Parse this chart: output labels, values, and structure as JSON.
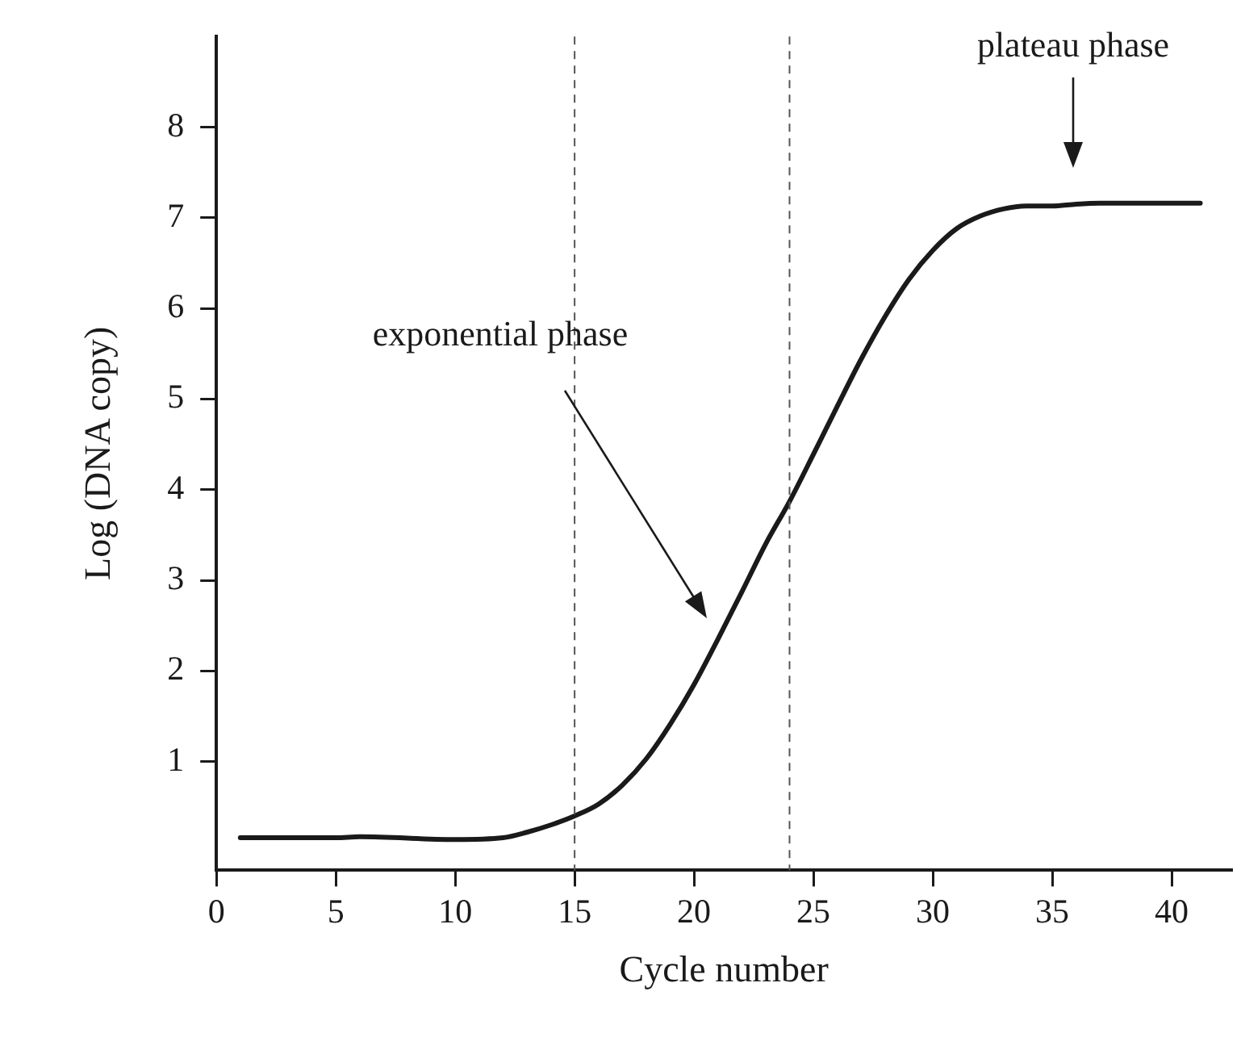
{
  "chart_data": {
    "type": "line",
    "xlabel": "Cycle number",
    "ylabel": "Log (DNA copy)",
    "x": [
      1,
      5,
      6,
      10,
      12,
      13,
      14,
      15,
      16,
      17,
      18,
      19,
      20,
      21,
      22,
      23,
      24,
      25,
      26,
      27,
      28,
      29,
      30,
      31,
      32,
      33,
      34,
      35,
      36,
      37,
      41.2
    ],
    "series": [
      {
        "color": "#1a1a1a",
        "values": [
          0.16,
          0.16,
          0.17,
          0.14,
          0.16,
          0.22,
          0.3,
          0.4,
          0.53,
          0.74,
          1.03,
          1.41,
          1.85,
          2.35,
          2.87,
          3.4,
          3.87,
          4.39,
          4.92,
          5.44,
          5.91,
          6.32,
          6.64,
          6.88,
          7.02,
          7.1,
          7.13,
          7.13,
          7.15,
          7.16,
          7.16
        ]
      }
    ],
    "xlim": [
      0,
      42.5
    ],
    "xticks": [
      0,
      5,
      10,
      15,
      20,
      25,
      30,
      35,
      40
    ],
    "ylim": [
      -0.2,
      9
    ],
    "yticks": [
      1,
      2,
      3,
      4,
      5,
      6,
      7,
      8
    ],
    "grid": false,
    "legend": false,
    "marker": "none",
    "line_style": "solid",
    "ref_lines": [
      {
        "axis": "x",
        "value": 15,
        "color": "#555555",
        "line_style": "dashed"
      },
      {
        "axis": "x",
        "value": 24,
        "color": "#555555",
        "line_style": "dashed"
      }
    ],
    "annotations": [
      "exponential phase",
      "plateau phase"
    ]
  }
}
